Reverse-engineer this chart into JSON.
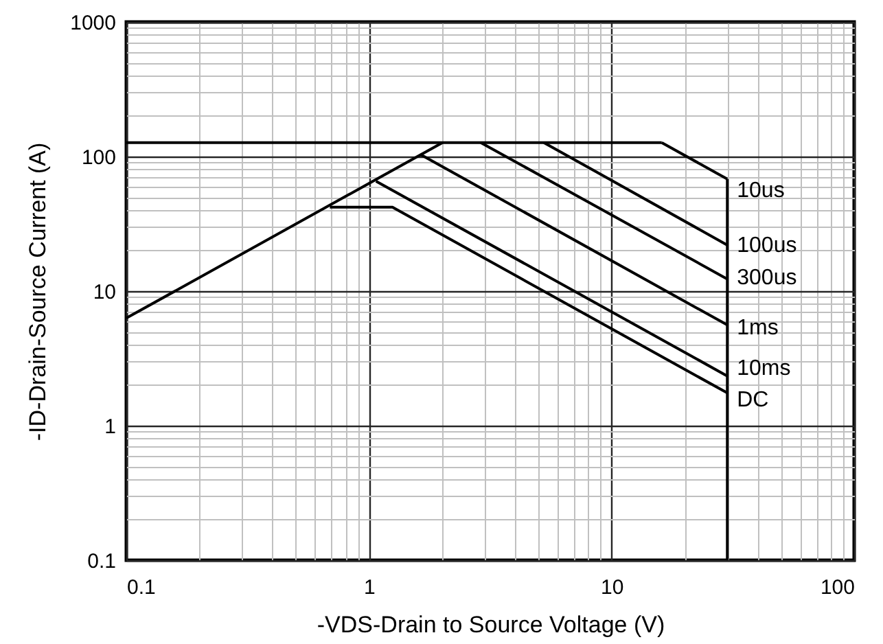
{
  "chart_data": {
    "type": "line",
    "xlabel": "-VDS-Drain to Source Voltage (V)",
    "ylabel": "-ID-Drain-Source Current (A)",
    "log": "xy",
    "xlim": [
      0.1,
      100
    ],
    "ylim": [
      0.1,
      1000
    ],
    "xticks": [
      0.1,
      1,
      10,
      100
    ],
    "yticks": [
      0.1,
      1,
      10,
      100,
      1000
    ],
    "grid": true,
    "line_style": "solid",
    "series": [
      {
        "color": "#000000",
        "x": [
          0.1,
          2.01
        ],
        "values": [
          6.3,
          127
        ]
      },
      {
        "color": "#000000",
        "x": [
          0.1,
          16.1
        ],
        "values": [
          127,
          127
        ]
      },
      {
        "name": "10us",
        "color": "#000000",
        "x": [
          16.1,
          30
        ],
        "values": [
          127,
          68
        ]
      },
      {
        "color": "#000000",
        "x": [
          30,
          30
        ],
        "values": [
          68,
          0.1
        ]
      },
      {
        "name": "100us",
        "color": "#000000",
        "x": [
          5.26,
          30
        ],
        "values": [
          127,
          22
        ]
      },
      {
        "name": "300us",
        "color": "#000000",
        "x": [
          2.89,
          30
        ],
        "values": [
          127,
          12.3
        ]
      },
      {
        "name": "1ms",
        "color": "#000000",
        "x": [
          1.64,
          30
        ],
        "values": [
          103,
          5.6
        ]
      },
      {
        "name": "10ms",
        "color": "#000000",
        "x": [
          1.07,
          30
        ],
        "values": [
          65.6,
          2.34
        ]
      },
      {
        "name": "DC",
        "color": "#000000",
        "x": [
          0.69,
          1.25,
          30
        ],
        "values": [
          42,
          42,
          1.75
        ]
      }
    ]
  }
}
